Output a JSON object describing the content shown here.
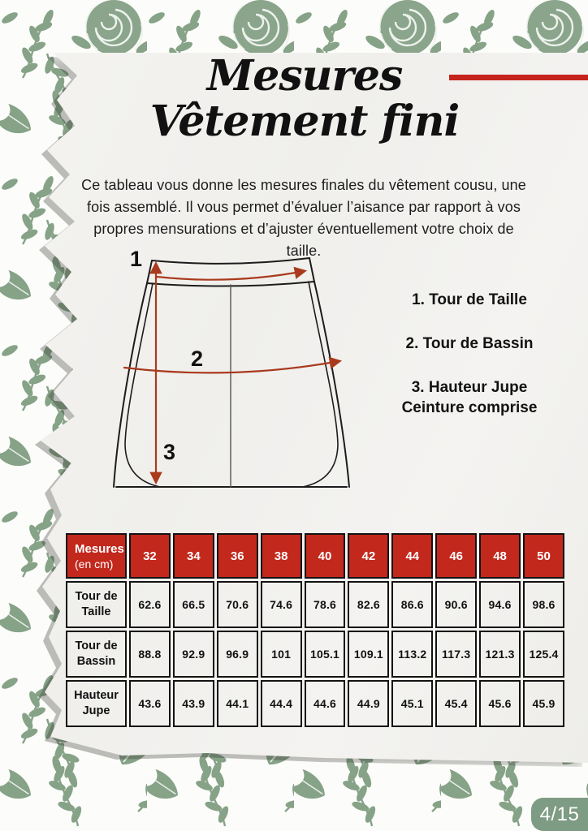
{
  "page": {
    "title_line1": "Mesures",
    "title_line2": "Vêtement fini",
    "page_number": "4/15"
  },
  "intro": {
    "text": "Ce tableau vous donne les mesures finales du vêtement cousu, une fois assemblé. Il vous permet d’évaluer l’aisance par rapport à vos propres mensurations et d’ajuster éventuellement votre choix de taille."
  },
  "diagram": {
    "label_1": "1",
    "label_2": "2",
    "label_3": "3"
  },
  "legend": {
    "items": [
      {
        "lines": [
          "1.  Tour de Taille"
        ]
      },
      {
        "lines": [
          "2. Tour de Bassin"
        ]
      },
      {
        "lines": [
          "3. Hauteur Jupe",
          "Ceinture comprise"
        ]
      }
    ]
  },
  "table": {
    "corner": {
      "line1": "Mesures",
      "line2": "(en cm)"
    },
    "sizes": [
      "32",
      "34",
      "36",
      "38",
      "40",
      "42",
      "44",
      "46",
      "48",
      "50"
    ],
    "rows": [
      {
        "label": "Tour de Taille",
        "values": [
          "62.6",
          "66.5",
          "70.6",
          "74.6",
          "78.6",
          "82.6",
          "86.6",
          "90.6",
          "94.6",
          "98.6"
        ]
      },
      {
        "label": "Tour de Bassin",
        "values": [
          "88.8",
          "92.9",
          "96.9",
          "101",
          "105.1",
          "109.1",
          "113.2",
          "117.3",
          "121.3",
          "125.4"
        ]
      },
      {
        "label": "Hauteur Jupe",
        "values": [
          "43.6",
          "43.9",
          "44.1",
          "44.4",
          "44.6",
          "44.9",
          "45.1",
          "45.4",
          "45.6",
          "45.9"
        ]
      }
    ]
  },
  "colors": {
    "accent_red": "#c5231b",
    "table_header_red": "#c3281d",
    "arrow_red": "#a93a1e",
    "leaf_green": "#86a287",
    "badge_green": "#7e9b83",
    "paper": "#f2f1ee"
  }
}
